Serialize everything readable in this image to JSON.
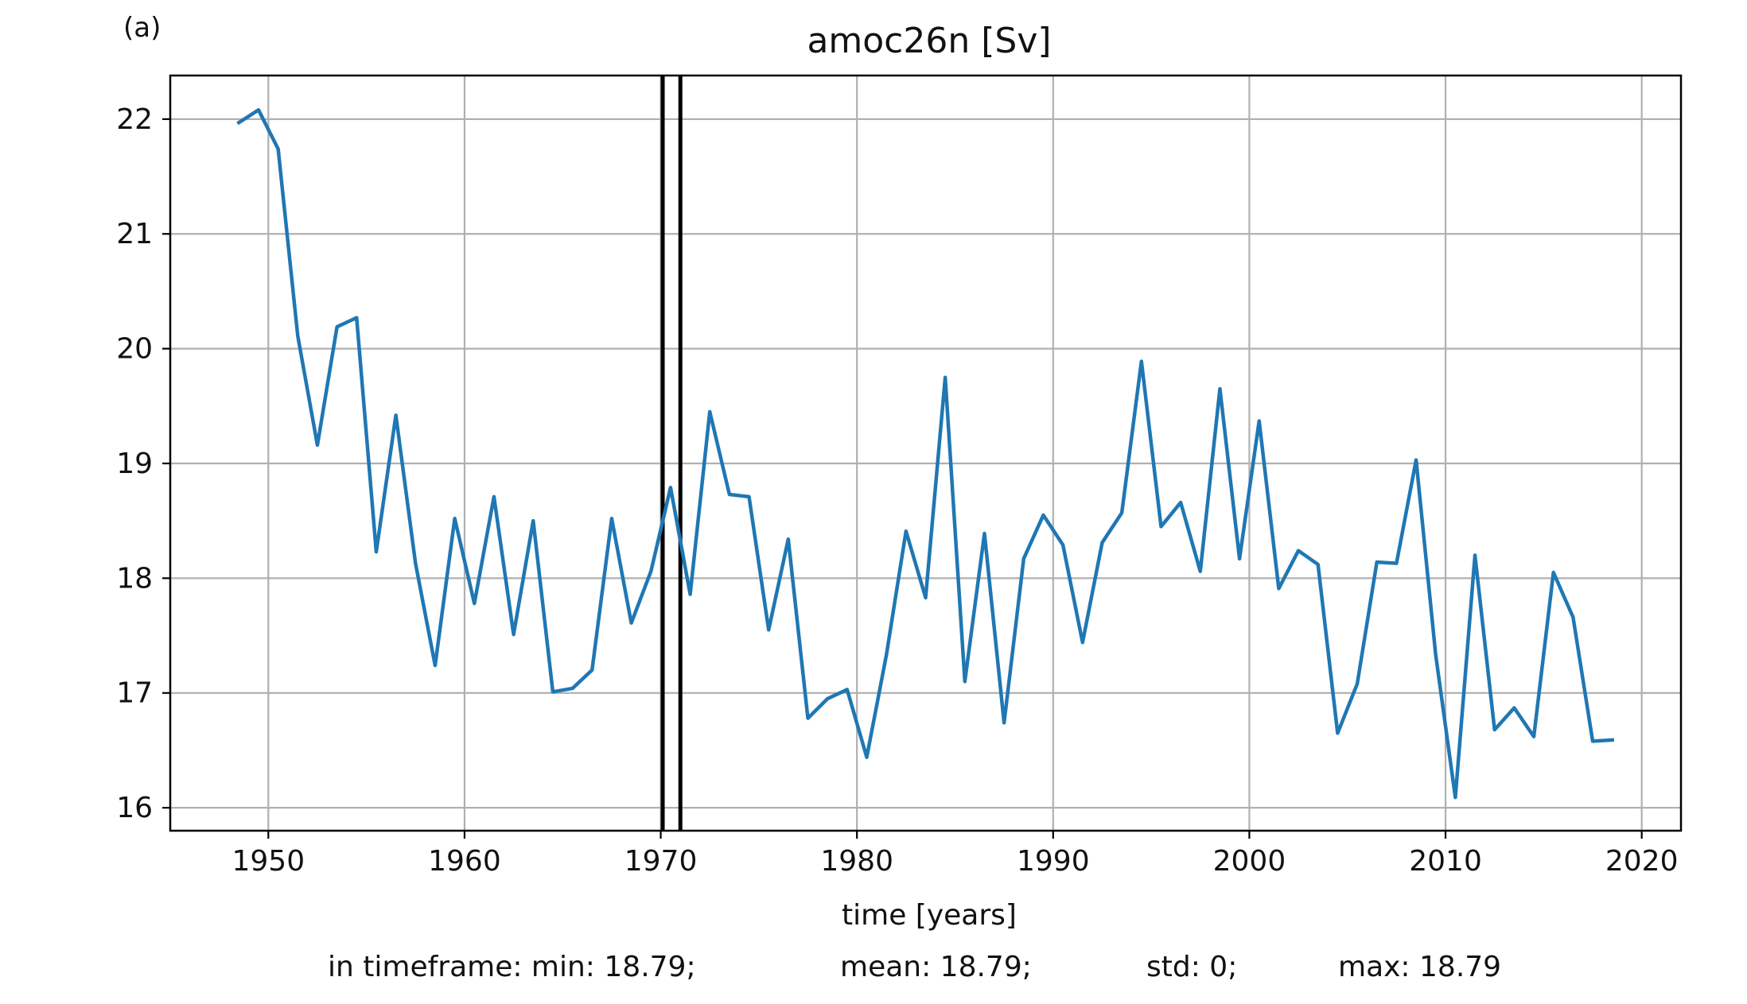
{
  "panel_label": "(a)",
  "chart_data": {
    "type": "line",
    "title": "amoc26n [Sv]",
    "xlabel": "time [years]",
    "ylabel": "",
    "xlim": [
      1945.0,
      2022.0
    ],
    "ylim": [
      15.8,
      22.38
    ],
    "xticks": [
      1950,
      1960,
      1970,
      1980,
      1990,
      2000,
      2010,
      2020
    ],
    "yticks": [
      16,
      17,
      18,
      19,
      20,
      21,
      22
    ],
    "grid": true,
    "line_color": "#1f77b4",
    "vertical_markers": [
      1970.1,
      1971.0
    ],
    "marker_color": "#000000",
    "series": [
      {
        "x": [
          1948.5,
          1949.5,
          1950.5,
          1951.5,
          1952.5,
          1953.5,
          1954.5,
          1955.5,
          1956.5,
          1957.5,
          1958.5,
          1959.5,
          1960.5,
          1961.5,
          1962.5,
          1963.5,
          1964.5,
          1965.5,
          1966.5,
          1967.5,
          1968.5,
          1969.5,
          1970.5,
          1971.5,
          1972.5,
          1973.5,
          1974.5,
          1975.5,
          1976.5,
          1977.5,
          1978.5,
          1979.5,
          1980.5,
          1981.5,
          1982.5,
          1983.5,
          1984.5,
          1985.5,
          1986.5,
          1987.5,
          1988.5,
          1989.5,
          1990.5,
          1991.5,
          1992.5,
          1993.5,
          1994.5,
          1995.5,
          1996.5,
          1997.5,
          1998.5,
          1999.5,
          2000.5,
          2001.5,
          2002.5,
          2003.5,
          2004.5,
          2005.5,
          2006.5,
          2007.5,
          2008.5,
          2009.5,
          2010.5,
          2011.5,
          2012.5,
          2013.5,
          2014.5,
          2015.5,
          2016.5,
          2017.5,
          2018.5
        ],
        "values": [
          21.97,
          22.08,
          21.74,
          20.11,
          19.16,
          20.19,
          20.27,
          18.23,
          19.42,
          18.13,
          17.24,
          18.52,
          17.78,
          18.71,
          17.51,
          18.5,
          17.01,
          17.04,
          17.2,
          18.52,
          17.61,
          18.06,
          18.79,
          17.86,
          19.45,
          18.73,
          18.71,
          17.55,
          18.34,
          16.78,
          16.95,
          17.03,
          16.44,
          17.33,
          18.41,
          17.83,
          19.75,
          17.1,
          18.39,
          16.74,
          18.17,
          18.55,
          18.29,
          17.44,
          18.31,
          18.57,
          19.89,
          18.45,
          18.66,
          18.06,
          19.65,
          18.17,
          19.37,
          17.91,
          18.24,
          18.12,
          16.65,
          17.08,
          18.14,
          18.13,
          19.03,
          17.33,
          16.09,
          18.2,
          16.68,
          16.87,
          16.62,
          18.05,
          17.66,
          16.58,
          16.59
        ]
      }
    ]
  },
  "stats": {
    "min": "in timeframe: min: 18.79;",
    "mean": "mean: 18.79;",
    "std": "std: 0;",
    "max": "max: 18.79"
  }
}
